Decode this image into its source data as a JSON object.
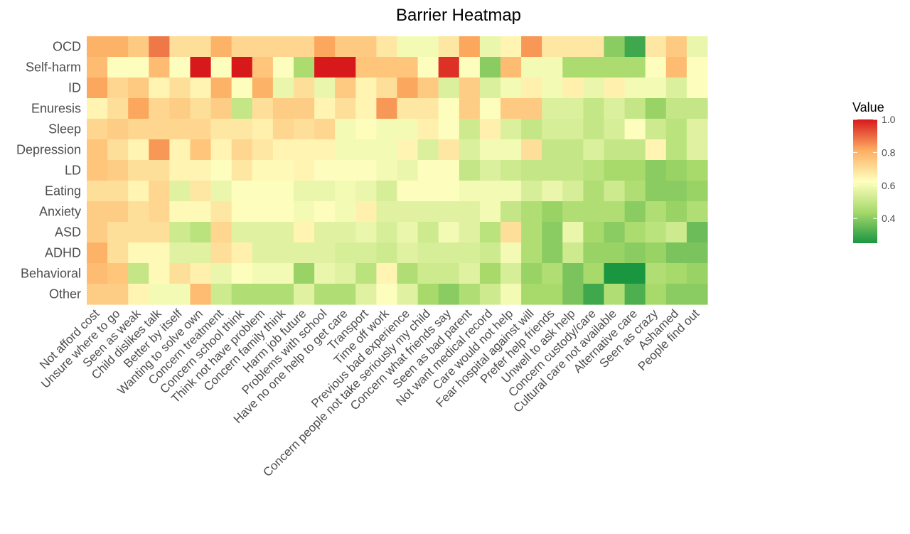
{
  "chart_data": {
    "type": "heatmap",
    "title": "Barrier Heatmap",
    "x_categories": [
      "Not afford cost",
      "Unsure where to go",
      "Seen as weak",
      "Child dislikes talk",
      "Better by itself",
      "Wanting to solve own",
      "Concern treatment",
      "Concern school think",
      "Think not have problem",
      "Concern family think",
      "Harm job future",
      "Problems with school",
      "Have no one help to get care",
      "Transport",
      "Time off work",
      "Previous bad experience",
      "Concern people not take seriously my child",
      "Concern what friends say",
      "Seen as bad parent",
      "Not want medical record",
      "Care would not help",
      "Fear hospital against will",
      "Prefer help friends",
      "Unwell to ask help",
      "Concern custody/care",
      "Cultural care not available",
      "Alternative care",
      "Seen as crazy",
      "Ashamed",
      "People find out"
    ],
    "y_categories": [
      "OCD",
      "Self-harm",
      "ID",
      "Enuresis",
      "Sleep",
      "Depression",
      "LD",
      "Eating",
      "Anxiety",
      "ASD",
      "ADHD",
      "Behavioral",
      "Other"
    ],
    "values": [
      [
        0.8,
        0.8,
        0.75,
        0.88,
        0.7,
        0.7,
        0.8,
        0.72,
        0.72,
        0.72,
        0.72,
        0.82,
        0.75,
        0.75,
        0.68,
        0.6,
        0.6,
        0.68,
        0.82,
        0.58,
        0.65,
        0.84,
        0.68,
        0.68,
        0.68,
        0.4,
        0.3,
        0.68,
        0.75,
        0.58
      ],
      [
        0.78,
        0.62,
        0.62,
        0.78,
        0.62,
        1.0,
        0.62,
        1.0,
        0.76,
        0.62,
        0.45,
        1.0,
        1.0,
        0.76,
        0.76,
        0.76,
        0.62,
        0.97,
        0.62,
        0.4,
        0.78,
        0.6,
        0.6,
        0.45,
        0.45,
        0.45,
        0.45,
        0.62,
        0.78,
        0.62
      ],
      [
        0.82,
        0.72,
        0.75,
        0.65,
        0.7,
        0.65,
        0.8,
        0.62,
        0.8,
        0.58,
        0.7,
        0.58,
        0.75,
        0.65,
        0.7,
        0.82,
        0.75,
        0.55,
        0.74,
        0.55,
        0.6,
        0.66,
        0.6,
        0.66,
        0.58,
        0.66,
        0.6,
        0.6,
        0.55,
        0.62
      ],
      [
        0.65,
        0.7,
        0.82,
        0.72,
        0.74,
        0.7,
        0.74,
        0.5,
        0.7,
        0.74,
        0.74,
        0.65,
        0.7,
        0.65,
        0.84,
        0.68,
        0.68,
        0.62,
        0.74,
        0.62,
        0.75,
        0.75,
        0.55,
        0.55,
        0.5,
        0.55,
        0.5,
        0.42,
        0.5,
        0.5
      ],
      [
        0.72,
        0.74,
        0.72,
        0.72,
        0.72,
        0.72,
        0.68,
        0.68,
        0.66,
        0.72,
        0.7,
        0.72,
        0.6,
        0.63,
        0.6,
        0.6,
        0.66,
        0.62,
        0.52,
        0.66,
        0.55,
        0.5,
        0.54,
        0.54,
        0.5,
        0.54,
        0.62,
        0.52,
        0.48,
        0.56
      ],
      [
        0.76,
        0.7,
        0.65,
        0.84,
        0.65,
        0.76,
        0.65,
        0.72,
        0.68,
        0.65,
        0.65,
        0.65,
        0.6,
        0.6,
        0.6,
        0.65,
        0.55,
        0.68,
        0.55,
        0.6,
        0.6,
        0.7,
        0.5,
        0.5,
        0.55,
        0.5,
        0.5,
        0.65,
        0.48,
        0.56
      ],
      [
        0.76,
        0.74,
        0.7,
        0.7,
        0.65,
        0.65,
        0.62,
        0.68,
        0.64,
        0.64,
        0.65,
        0.62,
        0.62,
        0.62,
        0.6,
        0.58,
        0.62,
        0.62,
        0.5,
        0.55,
        0.52,
        0.5,
        0.5,
        0.5,
        0.48,
        0.44,
        0.44,
        0.4,
        0.42,
        0.44
      ],
      [
        0.7,
        0.7,
        0.65,
        0.72,
        0.56,
        0.68,
        0.58,
        0.62,
        0.62,
        0.62,
        0.58,
        0.58,
        0.6,
        0.58,
        0.54,
        0.62,
        0.62,
        0.62,
        0.6,
        0.6,
        0.6,
        0.54,
        0.58,
        0.54,
        0.46,
        0.52,
        0.46,
        0.4,
        0.4,
        0.42
      ],
      [
        0.74,
        0.74,
        0.7,
        0.72,
        0.64,
        0.64,
        0.68,
        0.63,
        0.62,
        0.62,
        0.6,
        0.62,
        0.6,
        0.66,
        0.56,
        0.56,
        0.56,
        0.56,
        0.56,
        0.6,
        0.5,
        0.46,
        0.42,
        0.46,
        0.46,
        0.46,
        0.4,
        0.46,
        0.42,
        0.46
      ],
      [
        0.74,
        0.7,
        0.7,
        0.7,
        0.52,
        0.48,
        0.72,
        0.56,
        0.56,
        0.56,
        0.65,
        0.56,
        0.56,
        0.58,
        0.54,
        0.58,
        0.52,
        0.6,
        0.56,
        0.48,
        0.7,
        0.46,
        0.4,
        0.58,
        0.44,
        0.4,
        0.45,
        0.48,
        0.52,
        0.36
      ],
      [
        0.8,
        0.7,
        0.64,
        0.64,
        0.56,
        0.56,
        0.7,
        0.66,
        0.56,
        0.56,
        0.56,
        0.56,
        0.54,
        0.54,
        0.52,
        0.56,
        0.54,
        0.54,
        0.54,
        0.52,
        0.6,
        0.46,
        0.4,
        0.52,
        0.42,
        0.42,
        0.4,
        0.42,
        0.38,
        0.38
      ],
      [
        0.78,
        0.76,
        0.5,
        0.64,
        0.7,
        0.66,
        0.58,
        0.62,
        0.6,
        0.6,
        0.42,
        0.58,
        0.56,
        0.48,
        0.65,
        0.46,
        0.52,
        0.52,
        0.56,
        0.44,
        0.54,
        0.42,
        0.46,
        0.38,
        0.44,
        0.25,
        0.25,
        0.46,
        0.44,
        0.42
      ],
      [
        0.74,
        0.74,
        0.65,
        0.6,
        0.6,
        0.78,
        0.52,
        0.46,
        0.46,
        0.46,
        0.56,
        0.46,
        0.46,
        0.56,
        0.62,
        0.56,
        0.44,
        0.4,
        0.46,
        0.52,
        0.6,
        0.44,
        0.44,
        0.38,
        0.3,
        0.46,
        0.32,
        0.44,
        0.4,
        0.4
      ]
    ],
    "legend": {
      "title": "Value",
      "ticks": [
        "1.0",
        "0.8",
        "0.6",
        "0.4"
      ],
      "tick_values": [
        1.0,
        0.8,
        0.6,
        0.4
      ],
      "range": [
        0.25,
        1.0
      ],
      "colors": [
        "#1a9641",
        "#a6d96a",
        "#ffffbf",
        "#fdae61",
        "#d7191c"
      ],
      "placement": "right"
    },
    "grid": false
  }
}
